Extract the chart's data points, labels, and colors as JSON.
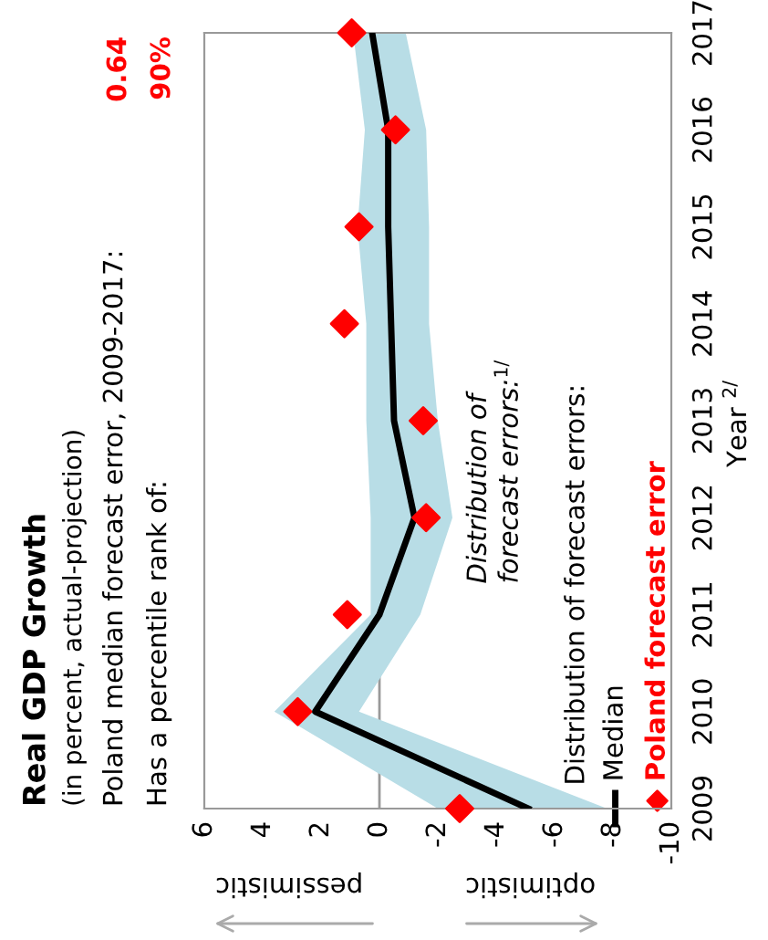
{
  "chart_data": {
    "type": "line",
    "orientation": "horizontal",
    "title": "Real GDP Growth",
    "subtitle": "(in percent, actual-projection)",
    "ylabel": "Year $^{2/}$",
    "legend_title": "Distribution of forecast errors:",
    "annotations": [
      "Poland median forecast error, 2009-2017:",
      "0.64",
      "Has a percentile rank of:",
      "90%",
      "pessimistic",
      "optimistic",
      "Distribution of\nforecast errors:$^{1/}$"
    ],
    "x": [
      2009,
      2010,
      2011,
      2012,
      2013,
      2014,
      2015,
      2016,
      2017
    ],
    "series": [
      {
        "name": "Median",
        "color": "#000000",
        "values": [
          -5.1,
          2.2,
          0,
          -1.2,
          -0.5,
          -0.4,
          -0.3,
          -0.3,
          0.25
        ],
        "lower": [
          -7.8,
          0.7,
          -1.4,
          -2.5,
          -2.0,
          -1.7,
          -1.7,
          -1.6,
          -0.9
        ],
        "upper": [
          -2.0,
          3.6,
          0.3,
          0.3,
          0.45,
          0.45,
          0.75,
          0.5,
          0.9
        ]
      },
      {
        "name": "Poland forecast error",
        "type": "scatter",
        "color": "#ff0000",
        "marker": "diamond",
        "values": [
          -2.75,
          2.8,
          1.1,
          -1.6,
          -1.5,
          1.2,
          0.7,
          -0.55,
          0.95
        ]
      }
    ],
    "ylim": [
      2009,
      2017
    ],
    "yticks": [
      2009,
      2010,
      2011,
      2012,
      2013,
      2014,
      2015,
      2016,
      2017
    ],
    "xlim": [
      6,
      -10
    ],
    "xticks": [
      6,
      4,
      2,
      0,
      -2,
      -4,
      -6,
      -8,
      -10
    ],
    "ref_lines": [
      {
        "axis": "x",
        "value": 0,
        "color": "#999999"
      }
    ],
    "legend": "bottom right",
    "grid": false
  }
}
